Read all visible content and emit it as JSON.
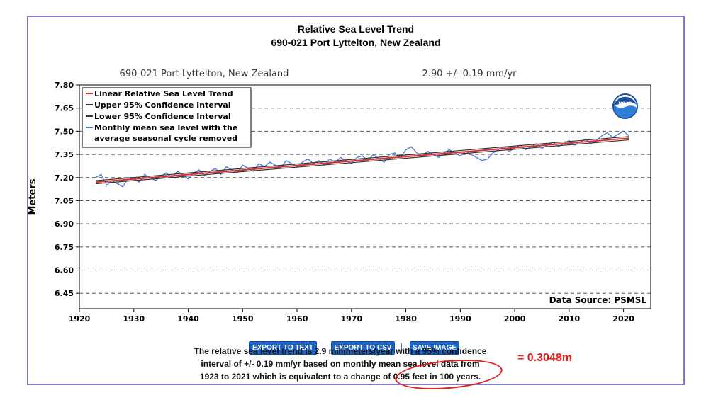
{
  "chart_data": {
    "type": "line",
    "title": "Relative Sea Level Trend",
    "subtitle": "690-021 Port Lyttelton, New Zealand",
    "plot_station_label": "690-021 Port Lyttelton, New Zealand",
    "plot_rate_label": "2.90 +/-  0.19 mm/yr",
    "ylabel": "Meters",
    "xlabel": "",
    "xlim": [
      1920,
      2025
    ],
    "ylim": [
      6.35,
      7.8
    ],
    "x_ticks": [
      "1920",
      "1930",
      "1940",
      "1950",
      "1960",
      "1970",
      "1980",
      "1990",
      "2000",
      "2010",
      "2020"
    ],
    "y_ticks": [
      "7.80",
      "7.65",
      "7.50",
      "7.35",
      "7.20",
      "7.05",
      "6.90",
      "6.75",
      "6.60",
      "6.45"
    ],
    "grid": "horizontal dashed",
    "legend_position": "top-left",
    "source_note": "Data Source: PSMSL",
    "series": [
      {
        "name": "Linear Relative Sea Level Trend",
        "color": "#d93030",
        "x": [
          1923,
          2021
        ],
        "y": [
          7.17,
          7.455
        ]
      },
      {
        "name": "Upper 95% Confidence Interval",
        "color": "#333333",
        "x": [
          1923,
          2021
        ],
        "y": [
          7.18,
          7.466
        ]
      },
      {
        "name": "Lower 95% Confidence Interval",
        "color": "#333333",
        "x": [
          1923,
          2021
        ],
        "y": [
          7.16,
          7.444
        ]
      },
      {
        "name": "Monthly mean sea level with the average seasonal cycle removed",
        "color": "#4a74d9",
        "x": [
          1923,
          1924,
          1925,
          1926,
          1927,
          1928,
          1929,
          1930,
          1931,
          1932,
          1933,
          1934,
          1935,
          1936,
          1937,
          1938,
          1939,
          1940,
          1941,
          1942,
          1943,
          1944,
          1945,
          1946,
          1947,
          1948,
          1949,
          1950,
          1951,
          1952,
          1953,
          1954,
          1955,
          1956,
          1957,
          1958,
          1959,
          1960,
          1961,
          1962,
          1963,
          1964,
          1965,
          1966,
          1967,
          1968,
          1969,
          1970,
          1971,
          1972,
          1973,
          1974,
          1975,
          1976,
          1977,
          1978,
          1979,
          1980,
          1981,
          1982,
          1983,
          1984,
          1985,
          1986,
          1987,
          1988,
          1989,
          1990,
          1991,
          1992,
          1993,
          1994,
          1995,
          1996,
          1997,
          1998,
          1999,
          2000,
          2001,
          2002,
          2003,
          2004,
          2005,
          2006,
          2007,
          2008,
          2009,
          2010,
          2011,
          2012,
          2013,
          2014,
          2015,
          2016,
          2017,
          2018,
          2019,
          2020,
          2021
        ],
        "y": [
          7.2,
          7.22,
          7.15,
          7.18,
          7.16,
          7.14,
          7.2,
          7.19,
          7.17,
          7.22,
          7.2,
          7.18,
          7.21,
          7.23,
          7.2,
          7.24,
          7.22,
          7.19,
          7.23,
          7.25,
          7.21,
          7.24,
          7.26,
          7.22,
          7.27,
          7.25,
          7.23,
          7.28,
          7.26,
          7.24,
          7.29,
          7.27,
          7.3,
          7.28,
          7.26,
          7.31,
          7.29,
          7.27,
          7.3,
          7.32,
          7.29,
          7.31,
          7.28,
          7.32,
          7.3,
          7.33,
          7.31,
          7.29,
          7.33,
          7.34,
          7.31,
          7.35,
          7.32,
          7.3,
          7.35,
          7.36,
          7.33,
          7.38,
          7.4,
          7.36,
          7.34,
          7.37,
          7.35,
          7.33,
          7.36,
          7.38,
          7.36,
          7.34,
          7.37,
          7.35,
          7.33,
          7.31,
          7.32,
          7.36,
          7.38,
          7.4,
          7.37,
          7.39,
          7.41,
          7.38,
          7.4,
          7.42,
          7.39,
          7.41,
          7.43,
          7.4,
          7.42,
          7.44,
          7.41,
          7.43,
          7.45,
          7.42,
          7.44,
          7.47,
          7.49,
          7.46,
          7.48,
          7.5,
          7.47
        ]
      }
    ]
  },
  "buttons": {
    "export_text": "EXPORT TO TEXT",
    "export_csv": "EXPORT TO CSV",
    "save_image": "SAVE IMAGE",
    "separator": "|"
  },
  "summary": {
    "line1": "The relative sea level trend is 2.9 millimeters/year with a 95% confidence",
    "line2": "interval of +/- 0.19 mm/yr based on monthly mean sea level data from",
    "line3": "1923 to 2021 which is equivalent to a change of 0.95 feet in 100 years."
  },
  "annotation": {
    "conversion": "= 0.3048m",
    "color": "#e41e1e"
  },
  "logo": {
    "text": "NOAA",
    "color": "#1a4fa0"
  }
}
